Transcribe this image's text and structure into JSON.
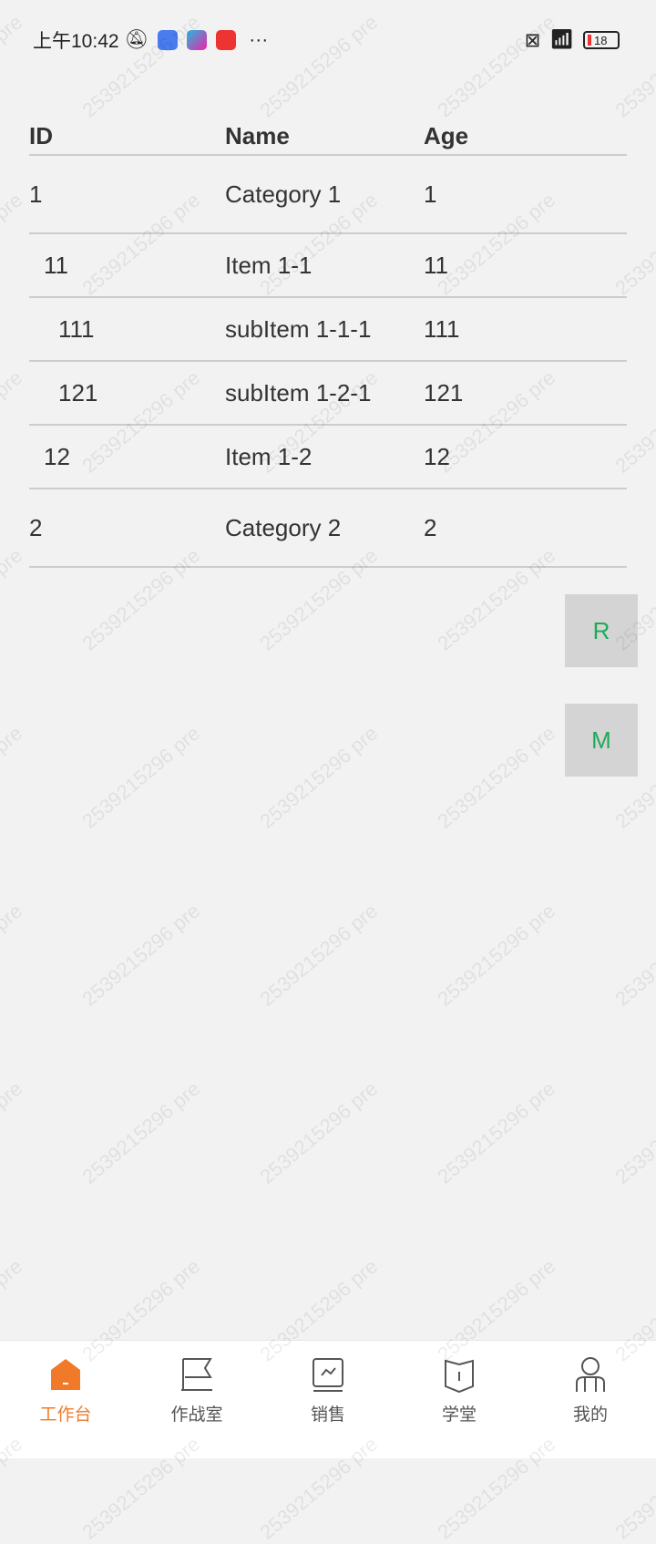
{
  "status_bar": {
    "time": "上午10:42",
    "battery": "18"
  },
  "table": {
    "headers": [
      "ID",
      "Name",
      "Age"
    ],
    "rows": [
      {
        "id": "1",
        "name": "Category 1",
        "age": "1",
        "level": 0
      },
      {
        "id": "11",
        "name": "Item 1-1",
        "age": "11",
        "level": 1
      },
      {
        "id": "111",
        "name": "subItem 1-1-1",
        "age": "111",
        "level": 2
      },
      {
        "id": "121",
        "name": "subItem 1-2-1",
        "age": "121",
        "level": 2
      },
      {
        "id": "12",
        "name": "Item 1-2",
        "age": "12",
        "level": 1
      },
      {
        "id": "2",
        "name": "Category 2",
        "age": "2",
        "level": 0
      }
    ]
  },
  "floating": {
    "r": "R",
    "m": "M"
  },
  "nav": {
    "items": [
      {
        "label": "工作台",
        "icon": "home-icon",
        "active": true
      },
      {
        "label": "作战室",
        "icon": "flag-icon"
      },
      {
        "label": "销售",
        "icon": "chart-icon"
      },
      {
        "label": "学堂",
        "icon": "book-icon"
      },
      {
        "label": "我的",
        "icon": "user-icon"
      }
    ]
  },
  "watermark": "2539215296 pre",
  "colors": {
    "accent": "#f07a2a",
    "fab_text": "#1faa59"
  }
}
